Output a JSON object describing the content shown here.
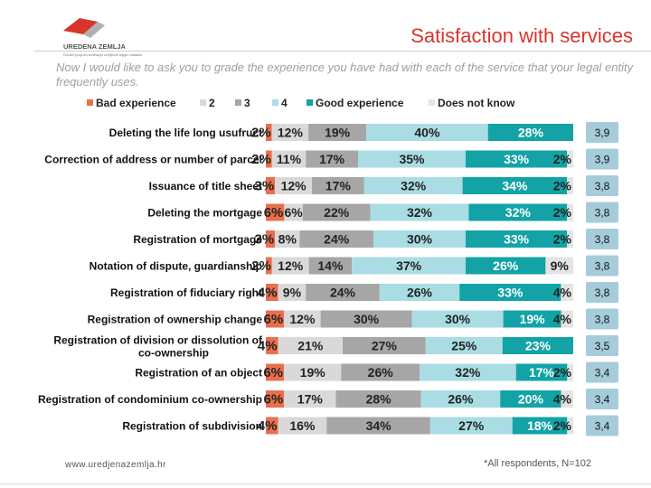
{
  "header": {
    "title": "Satisfaction with services",
    "logo_text": "UREDENA ZEMLJA",
    "logo_subtext": "Državni program sređivanja zemljišnih knjiga i katastra",
    "subtitle": "Now I would like to ask you to grade the experience you have had with each of the service that your legal entity frequently uses."
  },
  "footer": {
    "website": "www.uredjenazemlja.hr",
    "note": "*All respondents, N=102"
  },
  "colors": {
    "bad": "#e8704d",
    "g2": "#d9d9d9",
    "g3": "#a6a6a6",
    "g4": "#a9dde3",
    "good": "#13a3a6",
    "dnk": "#e4e4e4",
    "title_red": "#d9342b"
  },
  "chart_data": {
    "type": "bar",
    "orientation": "horizontal",
    "stacked": true,
    "percent_stacked": true,
    "categories": [
      "Deleting the life long usufruct",
      "Correction of address or number of parcel",
      "Issuance of title sheet",
      "Deleting the mortgage",
      "Registration of mortgage",
      "Notation of dispute, guardianship",
      "Registration of fiduciary right",
      "Registration of ownership change",
      "Registration of division or dissolution of co-ownership",
      "Registration of an object",
      "Registration of condominium co-ownership",
      "Registration of subdivision"
    ],
    "series": [
      {
        "name": "Bad experience",
        "color": "#e8704d",
        "values": [
          2,
          2,
          3,
          6,
          3,
          2,
          4,
          6,
          4,
          6,
          6,
          4
        ]
      },
      {
        "name": "2",
        "color": "#d9d9d9",
        "values": [
          12,
          11,
          12,
          6,
          8,
          12,
          9,
          12,
          21,
          19,
          17,
          16
        ]
      },
      {
        "name": "3",
        "color": "#a6a6a6",
        "values": [
          19,
          17,
          17,
          22,
          24,
          14,
          24,
          30,
          27,
          26,
          28,
          34
        ]
      },
      {
        "name": "4",
        "color": "#a9dde3",
        "values": [
          40,
          35,
          32,
          32,
          30,
          37,
          26,
          30,
          25,
          32,
          26,
          27
        ]
      },
      {
        "name": "Good experience",
        "color": "#13a3a6",
        "values": [
          28,
          33,
          34,
          32,
          33,
          26,
          33,
          19,
          23,
          17,
          20,
          18
        ]
      },
      {
        "name": "Does not know",
        "color": "#e4e4e4",
        "values": [
          0,
          2,
          2,
          2,
          2,
          9,
          4,
          4,
          0,
          2,
          4,
          2
        ]
      }
    ],
    "bar_labels": [
      [
        "2%",
        "12%",
        "19%",
        "40%",
        "28%",
        ""
      ],
      [
        "2%",
        "11%",
        "17%",
        "35%",
        "33%",
        "2%"
      ],
      [
        "3%",
        "12%",
        "17%",
        "32%",
        "34%",
        "2%"
      ],
      [
        "6%",
        "6%",
        "22%",
        "32%",
        "32%",
        "2%"
      ],
      [
        "3%",
        "8%",
        "24%",
        "30%",
        "33%",
        "2%"
      ],
      [
        "2%",
        "12%",
        "14%",
        "37%",
        "26%",
        "9%"
      ],
      [
        "4%",
        "9%",
        "24%",
        "26%",
        "33%",
        "4%"
      ],
      [
        "6%",
        "12%",
        "30%",
        "30%",
        "19%",
        "4%"
      ],
      [
        "4%",
        "21%",
        "27%",
        "25%",
        "23%",
        ""
      ],
      [
        "6%",
        "19%",
        "26%",
        "32%",
        "17%",
        "2%"
      ],
      [
        "6%",
        "17%",
        "28%",
        "26%",
        "20%",
        "4%"
      ],
      [
        "4%",
        "16%",
        "34%",
        "27%",
        "18%",
        "2%"
      ]
    ],
    "averages": [
      "3,9",
      "3,9",
      "3,8",
      "3,8",
      "3,8",
      "3,8",
      "3,8",
      "3,8",
      "3,5",
      "3,4",
      "3,4",
      "3,4"
    ],
    "xlim": [
      0,
      100
    ],
    "legend_position": "top",
    "grid": false,
    "title": "",
    "xlabel": "",
    "ylabel": ""
  }
}
